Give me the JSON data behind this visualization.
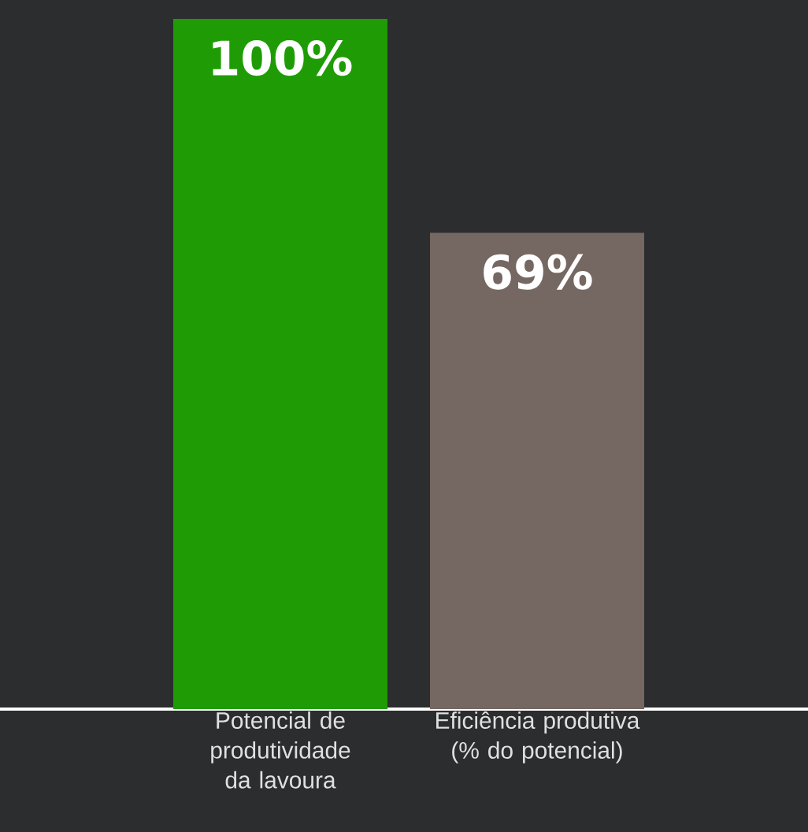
{
  "chart_data": {
    "type": "bar",
    "categories": [
      "Potencial de produtividade da lavoura",
      "Eficiência produtiva (% do potencial)"
    ],
    "values": [
      100,
      69
    ],
    "colors": [
      "#1f9c05",
      "#756761"
    ],
    "value_labels": [
      "100%",
      "69%"
    ]
  }
}
